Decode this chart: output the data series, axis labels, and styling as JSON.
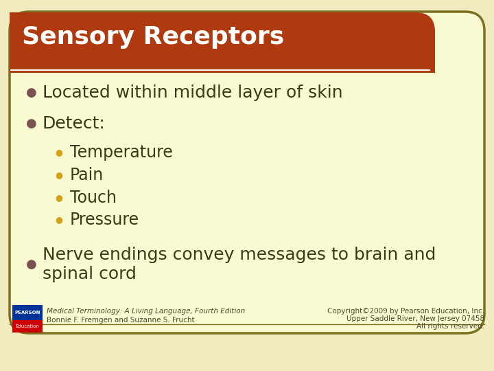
{
  "title": "Sensory Receptors",
  "title_bg_color": "#B03A10",
  "title_text_color": "#FFFFFF",
  "slide_bg_color": "#FAFAD2",
  "outer_bg_color": "#F0ECC0",
  "border_color": "#7A7020",
  "bullet_color_l1": "#7A5050",
  "bullet_color_l2": "#D4A017",
  "text_color": "#3A3A1A",
  "lines": [
    {
      "level": 1,
      "text": "Located within middle layer of skin"
    },
    {
      "level": 1,
      "text": "Detect:"
    },
    {
      "level": 2,
      "text": "Temperature"
    },
    {
      "level": 2,
      "text": "Pain"
    },
    {
      "level": 2,
      "text": "Touch"
    },
    {
      "level": 2,
      "text": "Pressure"
    },
    {
      "level": 1,
      "text": "Nerve endings convey messages to brain and\nspinal cord"
    }
  ],
  "footer_left_line1": "Medical Terminology: A Living Language, Fourth Edition",
  "footer_left_line2": "Bonnie F. Fremgen and Suzanne S. Frucht",
  "footer_right_line1": "Copyright©2009 by Pearson Education, Inc.",
  "footer_right_line2": "Upper Saddle River, New Jersey 07458",
  "footer_right_line3": "All rights reserved.",
  "pearson_box_color1": "#003399",
  "pearson_box_color2": "#CC0000",
  "title_fontsize": 26,
  "body_fontsize": 18,
  "footer_fontsize": 7.5
}
